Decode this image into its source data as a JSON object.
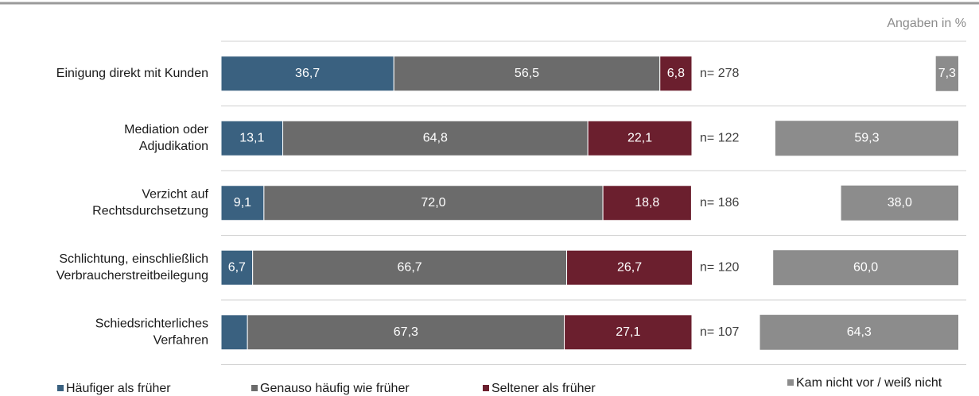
{
  "chart_data": {
    "type": "stacked-bar",
    "note": "Angaben in %",
    "categories": [
      [
        "Einigung direkt mit Kunden"
      ],
      [
        "Mediation oder",
        "Adjudikation"
      ],
      [
        "Verzicht auf",
        "Rechtsdurchsetzung"
      ],
      [
        "Schlichtung, einschließlich",
        "Verbraucherstreitbeilegung"
      ],
      [
        "Schiedsrichterliches",
        "Verfahren"
      ]
    ],
    "xlim": [
      0,
      100
    ],
    "series": [
      {
        "name": "Häufiger als früher",
        "color": "#3a6180",
        "values": [
          36.7,
          13.1,
          9.1,
          6.7,
          5.6
        ],
        "value_labels": [
          "36,7",
          "13,1",
          "9,1",
          "6,7",
          null
        ]
      },
      {
        "name": "Genauso häufig wie früher",
        "color": "#6b6b6b",
        "values": [
          56.5,
          64.8,
          72.0,
          66.7,
          67.3
        ],
        "value_labels": [
          "56,5",
          "64,8",
          "72,0",
          "66,7",
          "67,3"
        ]
      },
      {
        "name": "Seltener als früher",
        "color": "#6b1f2e",
        "values": [
          6.8,
          22.1,
          18.8,
          26.7,
          27.1
        ],
        "value_labels": [
          "6,8",
          "22,1",
          "18,8",
          "26,7",
          "27,1"
        ]
      }
    ],
    "n_labels": [
      "n= 278",
      "n= 122",
      "n= 186",
      "n= 120",
      "n= 107"
    ],
    "side_series": {
      "name": "Kam nicht vor / weiß nicht",
      "color": "#8c8c8c",
      "values": [
        7.3,
        59.3,
        38.0,
        60.0,
        64.3
      ],
      "value_labels": [
        "7,3",
        "59,3",
        "38,0",
        "60,0",
        "64,3"
      ]
    },
    "side_xlim": [
      0,
      100
    ]
  }
}
